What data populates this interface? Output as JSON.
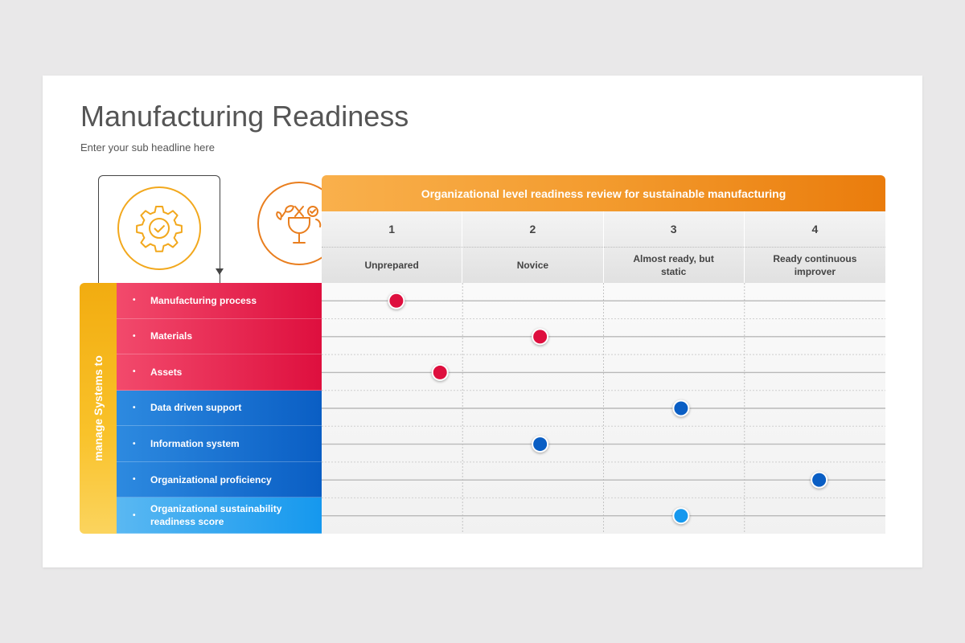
{
  "title": "Manufacturing Readiness",
  "subtitle": "Enter your sub headline here",
  "icons": {
    "left": "gear-check-icon",
    "right": "eco-tools-icon"
  },
  "colors": {
    "orange": "#f39b2e",
    "red": "#de0f3e",
    "blue": "#0a5ec4",
    "light_blue": "#1598ee",
    "yellow": "#f2ac10"
  },
  "review": {
    "header": "Organizational level readiness review for sustainable manufacturing",
    "levels": [
      {
        "num": "1",
        "name": "Unprepared"
      },
      {
        "num": "2",
        "name": "Novice"
      },
      {
        "num": "3",
        "name": "Almost ready, but static"
      },
      {
        "num": "4",
        "name": "Ready continuous improver"
      }
    ]
  },
  "side_label": "manage Systems to",
  "rows": [
    {
      "label": "Manufacturing process",
      "group": "red",
      "level": 1.03
    },
    {
      "label": "Materials",
      "group": "red",
      "level": 2.05
    },
    {
      "label": "Assets",
      "group": "red",
      "level": 1.34
    },
    {
      "label": "Data driven support",
      "group": "blue",
      "level": 3.05
    },
    {
      "label": "Information system",
      "group": "blue",
      "level": 2.05
    },
    {
      "label": "Organizational proficiency",
      "group": "blue",
      "level": 4.03
    },
    {
      "label": "Organizational sustainability readiness score",
      "group": "light",
      "level": 3.05
    }
  ]
}
